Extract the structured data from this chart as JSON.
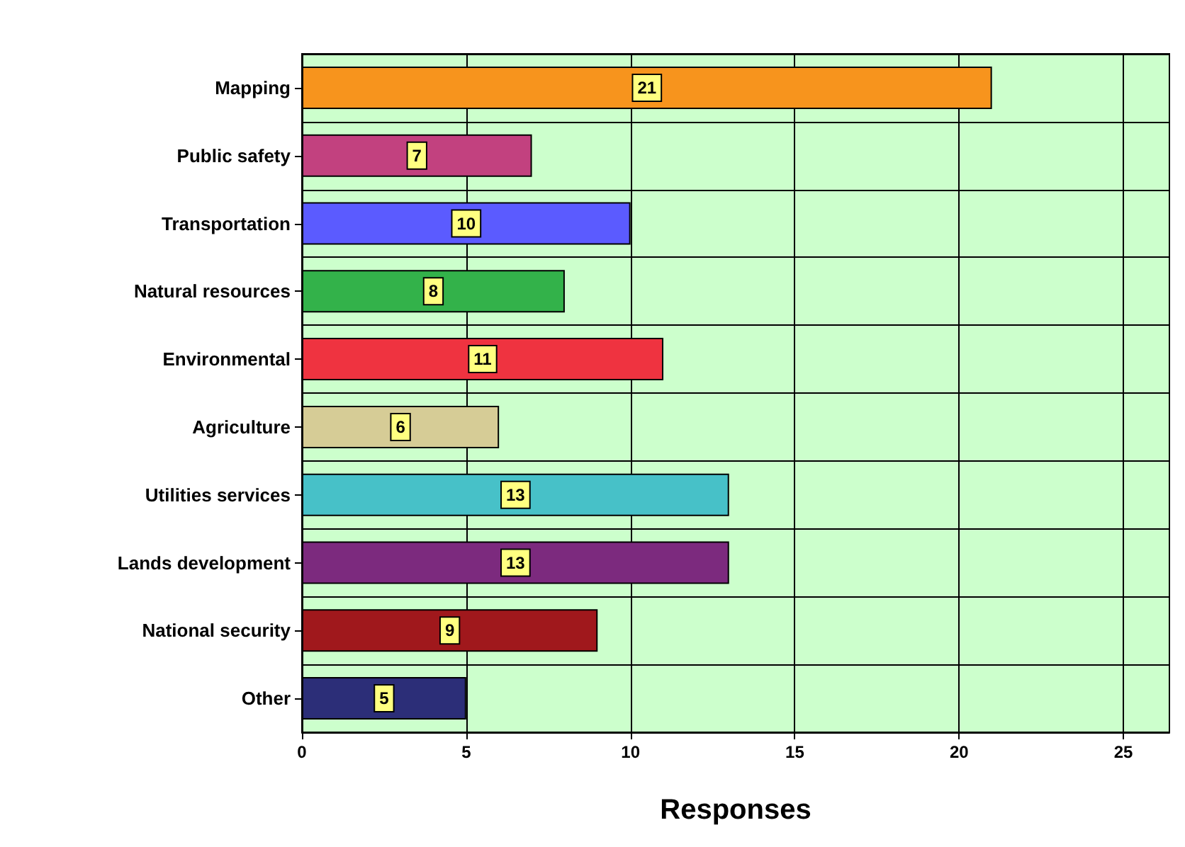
{
  "chart_data": {
    "type": "bar",
    "orientation": "horizontal",
    "xlabel": "Responses",
    "categories": [
      "Mapping",
      "Public safety",
      "Transportation",
      "Natural resources",
      "Environmental",
      "Agriculture",
      "Utilities services",
      "Lands development",
      "National security",
      "Other"
    ],
    "values": [
      21,
      7,
      10,
      8,
      11,
      6,
      13,
      13,
      9,
      5
    ],
    "colors": [
      "#f7941d",
      "#c2417f",
      "#5b5bff",
      "#33b24a",
      "#ef3340",
      "#d6cc96",
      "#47c1c8",
      "#7c2a7e",
      "#a0181c",
      "#2c2e78"
    ],
    "xlim": [
      0,
      26.4
    ],
    "xticks": [
      0,
      5,
      10,
      15,
      20,
      25
    ],
    "grid": true,
    "data_labels": true
  }
}
